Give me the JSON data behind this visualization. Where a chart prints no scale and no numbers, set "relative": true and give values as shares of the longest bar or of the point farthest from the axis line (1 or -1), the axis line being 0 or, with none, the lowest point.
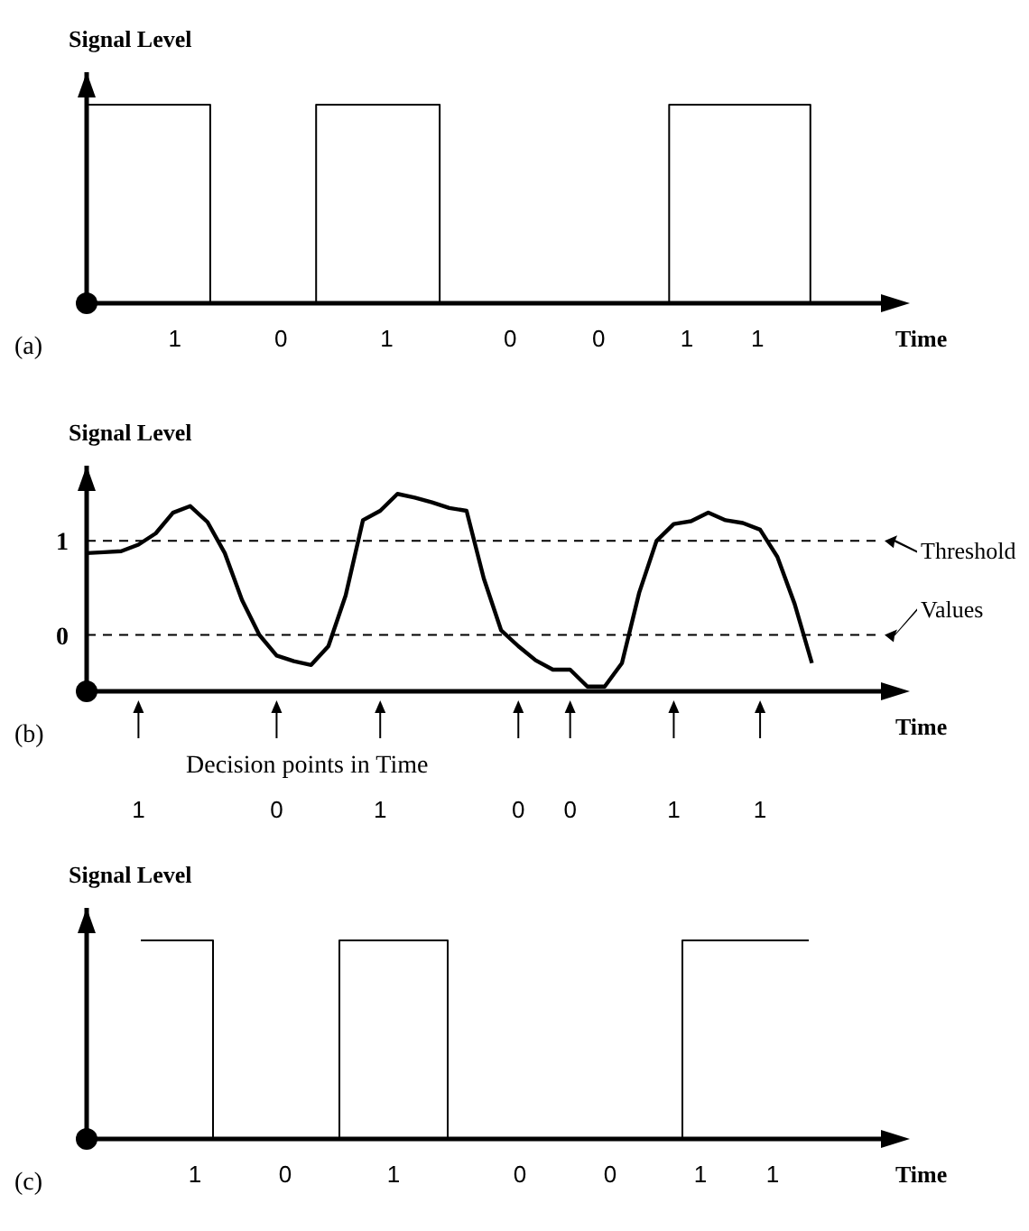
{
  "chart_data": [
    {
      "type": "step",
      "title": "(a)",
      "ylabel": "Signal Level",
      "xlabel": "Time",
      "relative": true,
      "tick_labels": "x",
      "color": "#000000",
      "categories": [
        null,
        null,
        null,
        null,
        null,
        "1",
        null,
        null,
        null,
        null,
        null,
        "0",
        null,
        null,
        null,
        null,
        null,
        "1",
        null,
        null,
        null,
        null,
        null,
        null,
        "0",
        null,
        null,
        null,
        null,
        "0",
        null,
        null,
        null,
        null,
        "1",
        null,
        null,
        null,
        "1",
        null,
        null,
        null
      ],
      "values": [
        1,
        1,
        1,
        1,
        1,
        1,
        1,
        0,
        0,
        0,
        0,
        0,
        0,
        1,
        1,
        1,
        1,
        1,
        1,
        1,
        0,
        0,
        0,
        0,
        0,
        0,
        0,
        0,
        0,
        0,
        0,
        0,
        0,
        1,
        1,
        1,
        1,
        1,
        1,
        1,
        1,
        0
      ]
    },
    {
      "type": "line",
      "title": "(b)",
      "ylabel": "Signal Level",
      "xlabel": "Time",
      "color": "#000000",
      "categories": [
        null,
        null,
        null,
        "1",
        null,
        null,
        null,
        null,
        null,
        null,
        null,
        "0",
        null,
        null,
        null,
        null,
        null,
        "1",
        null,
        null,
        null,
        null,
        null,
        null,
        null,
        "0",
        null,
        null,
        "0",
        null,
        null,
        null,
        null,
        null,
        "1",
        null,
        null,
        null,
        null,
        "1",
        null,
        null,
        null
      ],
      "values": [
        0.87,
        0.88,
        0.89,
        0.96,
        1.08,
        1.3,
        1.37,
        1.2,
        0.87,
        0.37,
        0.0,
        -0.22,
        -0.28,
        -0.32,
        -0.12,
        0.42,
        1.22,
        1.32,
        1.5,
        1.46,
        1.41,
        1.35,
        1.32,
        0.6,
        0.05,
        -0.12,
        -0.27,
        -0.37,
        -0.37,
        -0.55,
        -0.55,
        -0.3,
        0.45,
        1.0,
        1.18,
        1.21,
        1.3,
        1.22,
        1.19,
        1.12,
        0.83,
        0.33,
        -0.3
      ],
      "ylim": [
        -0.6,
        1.8
      ],
      "yticks": [
        0,
        1
      ],
      "ref_lines": [
        {
          "axis": "y",
          "value": 1,
          "label": "Threshold",
          "line_style": "dashed"
        },
        {
          "axis": "y",
          "value": 0,
          "label": "Values",
          "line_style": "dashed"
        }
      ],
      "annotations": [
        "Decision points in Time"
      ]
    },
    {
      "type": "step",
      "title": "(c)",
      "ylabel": "Signal  Level",
      "xlabel": "Time",
      "relative": true,
      "tick_labels": "x",
      "color": "#000000",
      "categories": [
        null,
        null,
        null,
        null,
        null,
        null,
        "1",
        null,
        null,
        null,
        null,
        "0",
        null,
        null,
        null,
        null,
        null,
        "1",
        null,
        null,
        null,
        null,
        null,
        null,
        "0",
        null,
        null,
        null,
        null,
        "0",
        null,
        null,
        null,
        null,
        "1",
        null,
        null,
        null,
        "1",
        null,
        null
      ],
      "values": [
        null,
        null,
        null,
        1,
        1,
        1,
        1,
        0,
        0,
        0,
        0,
        0,
        0,
        0,
        1,
        1,
        1,
        1,
        1,
        1,
        0,
        0,
        0,
        0,
        0,
        0,
        0,
        0,
        0,
        0,
        0,
        0,
        0,
        1,
        1,
        1,
        1,
        1,
        1,
        1,
        1
      ]
    }
  ]
}
